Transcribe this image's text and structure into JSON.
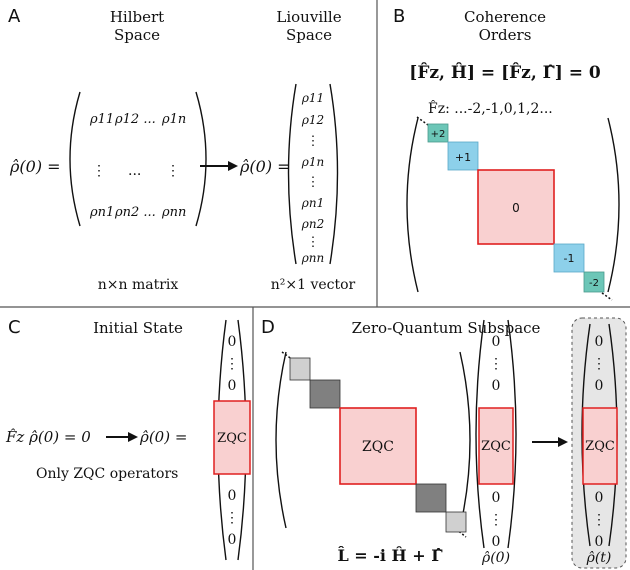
{
  "panelA": {
    "label": "A",
    "hilbert_title_1": "Hilbert",
    "hilbert_title_2": "Space",
    "liouville_title_1": "Liouville",
    "liouville_title_2": "Space",
    "rho_lhs": "ρ̂(0) =",
    "rho_lhs2": "ρ̂(0) =",
    "matrix_row1": [
      "ρ11",
      "ρ12 ...",
      "ρ1n"
    ],
    "matrix_row2": [
      "⋮",
      "...",
      "⋮"
    ],
    "matrix_row3": [
      "ρn1",
      "ρn2 ...",
      "ρnn"
    ],
    "vector_entries": [
      "ρ11",
      "ρ12",
      "⋮",
      "ρ1n",
      "⋮",
      "ρn1",
      "ρn2",
      "⋮",
      "ρnn"
    ],
    "matrix_caption": "n×n matrix",
    "vector_caption": "n²×1 vector"
  },
  "panelB": {
    "label": "B",
    "title_1": "Coherence",
    "title_2": "Orders",
    "commutator": "[F̂z, Ĥ] = [F̂z, Γ̂] = 0",
    "orders_text": "F̂z:  ...-2,-1,0,1,2...",
    "blocks": [
      "+2",
      "+1",
      "0",
      "-1",
      "-2"
    ],
    "colors": {
      "teal": "#6cc6b7",
      "blue": "#8dd0ea",
      "pink": "#f9d0d0",
      "red": "#e02020"
    }
  },
  "panelC": {
    "label": "C",
    "title": "Initial State",
    "equation": "F̂z ρ̂(0) = 0",
    "rho_rhs": "ρ̂(0) =",
    "caption": "Only ZQC operators",
    "vector_top": [
      "0",
      "⋮",
      "0"
    ],
    "zqc": "ZQC",
    "vector_bottom": [
      "0",
      "⋮",
      "0"
    ]
  },
  "panelD": {
    "label": "D",
    "title": "Zero-Quantum Subspace",
    "zqc": "ZQC",
    "liouvillian": "L̂ = -i Ĥ + Γ̂",
    "rho0": "ρ̂(0)",
    "rhot": "ρ̂(t)",
    "vector_top": [
      "0",
      "⋮",
      "0"
    ],
    "vector_bottom": [
      "0",
      "⋮",
      "0"
    ],
    "colors": {
      "light_gray": "#d0d0d0",
      "dark_gray": "#808080",
      "bg_gray": "#e6e6e6"
    }
  }
}
